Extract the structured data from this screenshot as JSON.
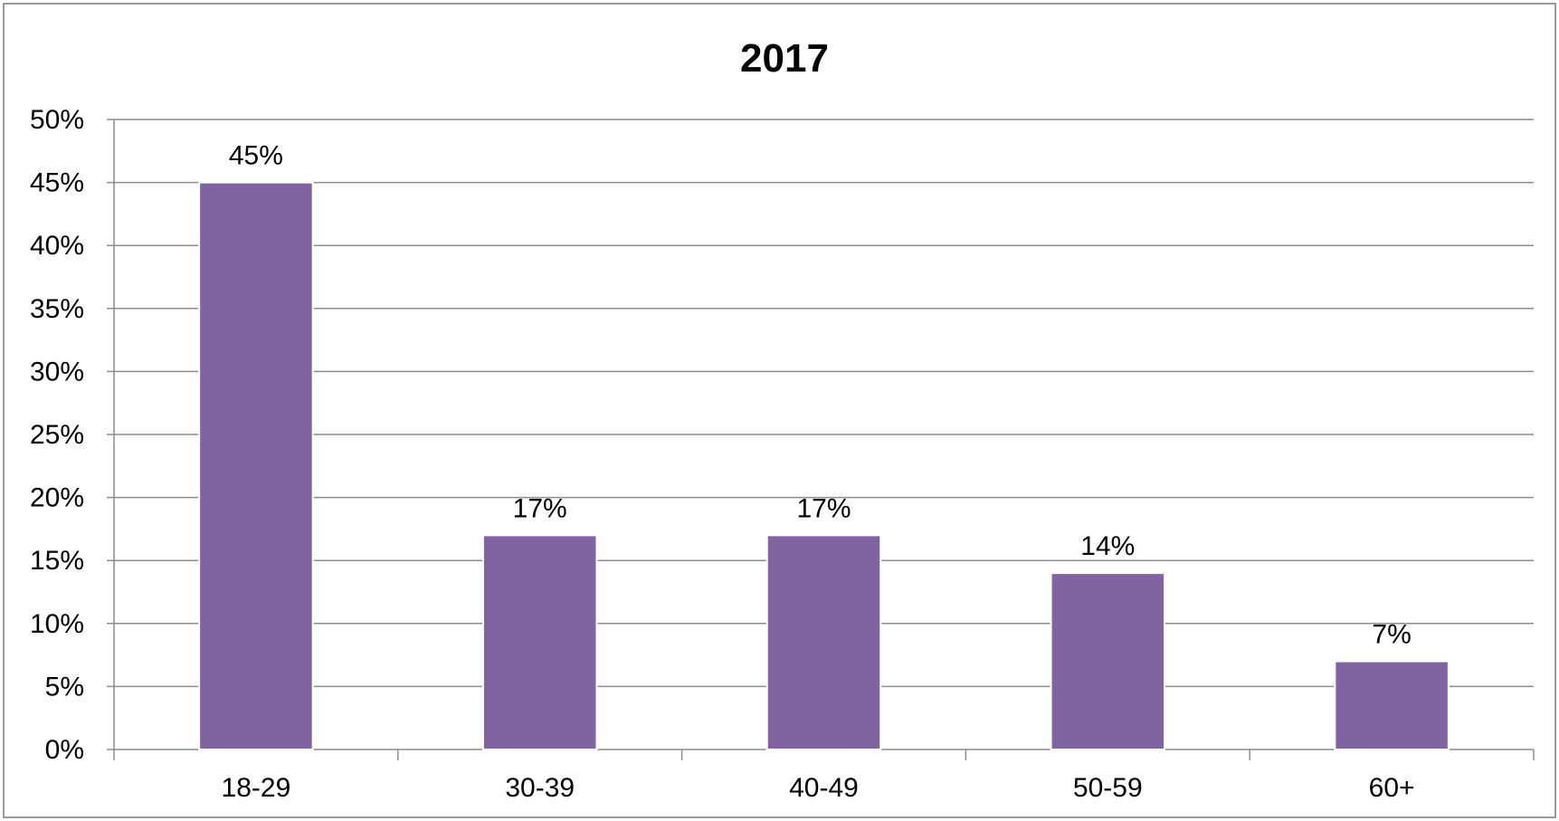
{
  "chart_data": {
    "type": "bar",
    "title": "2017",
    "xlabel": "",
    "ylabel": "",
    "categories": [
      "18-29",
      "30-39",
      "40-49",
      "50-59",
      "60+"
    ],
    "values": [
      45,
      17,
      17,
      14,
      7
    ],
    "data_labels": [
      "45%",
      "17%",
      "17%",
      "14%",
      "7%"
    ],
    "ylim": [
      0,
      50
    ],
    "y_ticks": [
      0,
      5,
      10,
      15,
      20,
      25,
      30,
      35,
      40,
      45,
      50
    ],
    "y_tick_labels": [
      "0%",
      "5%",
      "10%",
      "15%",
      "20%",
      "25%",
      "30%",
      "35%",
      "40%",
      "45%",
      "50%"
    ],
    "grid": true,
    "legend": "none",
    "colors": {
      "bar": "#8064A2",
      "bar_edge": "#ffffff",
      "gridline": "#8c8c8c",
      "axis": "#8c8c8c",
      "frame": "#9a9a9a"
    }
  }
}
